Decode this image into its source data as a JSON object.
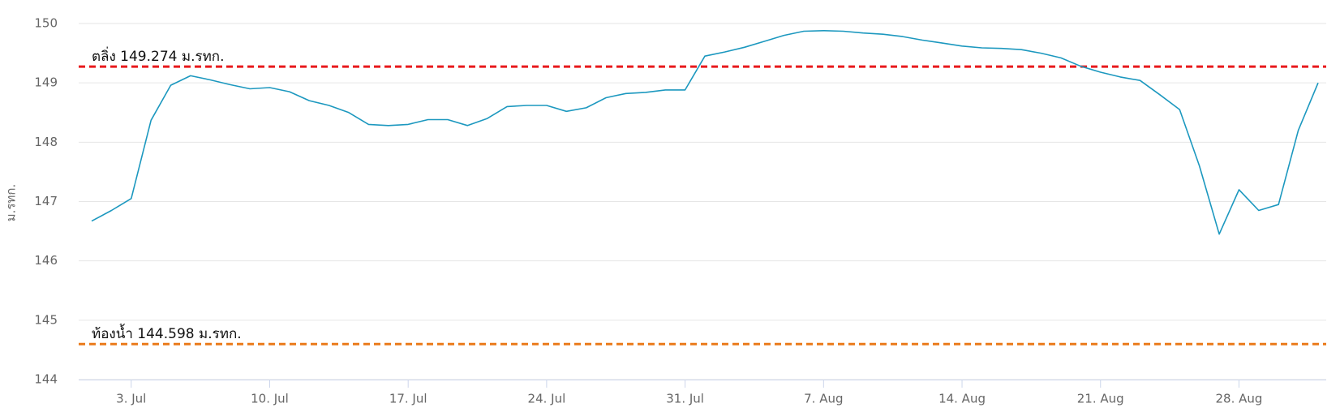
{
  "chart_data": {
    "type": "line",
    "y_axis_title": "ม.รทก.",
    "x": [
      "1. Jul",
      "2. Jul",
      "3. Jul",
      "4. Jul",
      "5. Jul",
      "6. Jul",
      "7. Jul",
      "8. Jul",
      "9. Jul",
      "10. Jul",
      "11. Jul",
      "12. Jul",
      "13. Jul",
      "14. Jul",
      "15. Jul",
      "16. Jul",
      "17. Jul",
      "18. Jul",
      "19. Jul",
      "20. Jul",
      "21. Jul",
      "22. Jul",
      "23. Jul",
      "24. Jul",
      "25. Jul",
      "26. Jul",
      "27. Jul",
      "28. Jul",
      "29. Jul",
      "30. Jul",
      "31. Jul",
      "1. Aug",
      "2. Aug",
      "3. Aug",
      "4. Aug",
      "5. Aug",
      "6. Aug",
      "7. Aug",
      "8. Aug",
      "9. Aug",
      "10. Aug",
      "11. Aug",
      "12. Aug",
      "13. Aug",
      "14. Aug",
      "15. Aug",
      "16. Aug",
      "17. Aug",
      "18. Aug",
      "19. Aug",
      "20. Aug",
      "21. Aug",
      "22. Aug",
      "23. Aug",
      "24. Aug",
      "25. Aug",
      "26. Aug",
      "27. Aug",
      "28. Aug",
      "29. Aug",
      "30. Aug",
      "31. Aug",
      "1. Sep"
    ],
    "series": [
      {
        "color": "#1c98bf",
        "values": [
          146.67,
          146.85,
          147.05,
          148.37,
          148.96,
          149.12,
          149.05,
          148.97,
          148.9,
          148.92,
          148.85,
          148.7,
          148.62,
          148.5,
          148.3,
          148.28,
          148.3,
          148.38,
          148.38,
          148.28,
          148.4,
          148.6,
          148.62,
          148.62,
          148.52,
          148.58,
          148.75,
          148.82,
          148.84,
          148.88,
          148.88,
          149.45,
          149.52,
          149.6,
          149.7,
          149.8,
          149.87,
          149.88,
          149.87,
          149.84,
          149.82,
          149.78,
          149.72,
          149.67,
          149.62,
          149.59,
          149.58,
          149.56,
          149.5,
          149.42,
          149.28,
          149.18,
          149.1,
          149.04,
          148.8,
          148.55,
          147.6,
          146.45,
          147.2,
          146.85,
          146.95,
          148.2,
          149.0
        ]
      }
    ],
    "ylim": [
      144,
      150
    ],
    "yticks": [
      144,
      145,
      146,
      147,
      148,
      149,
      150
    ],
    "xticks": [
      "3. Jul",
      "10. Jul",
      "17. Jul",
      "24. Jul",
      "31. Jul",
      "7. Aug",
      "14. Aug",
      "21. Aug",
      "28. Aug"
    ],
    "grid": true,
    "plot_lines": [
      {
        "value": 149.274,
        "label": "ตลิ่ง 149.274 ม.รทก.",
        "color": "#e8191c"
      },
      {
        "value": 144.598,
        "label": "ท้องน้ำ 144.598 ม.รทก.",
        "color": "#ea7a1a"
      }
    ]
  }
}
